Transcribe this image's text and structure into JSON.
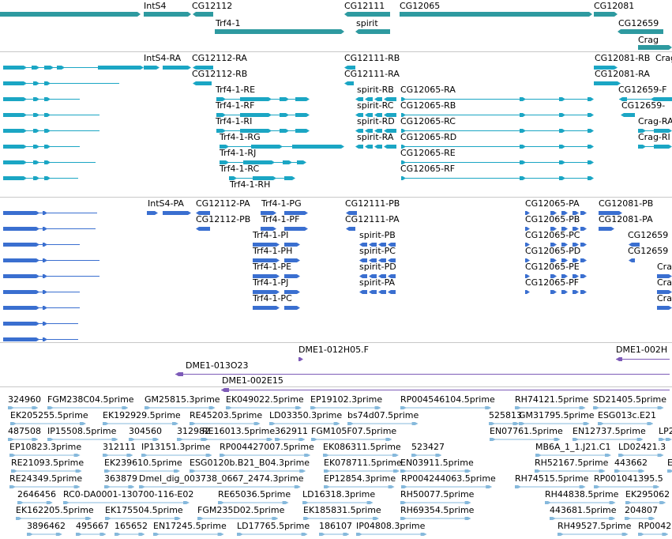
{
  "colors": {
    "gene": "#2e9aa0",
    "transcript": "#1ba6c4",
    "protein": "#3a6fd0",
    "clone": "#7d5bb8",
    "est": "#86b9dc"
  },
  "tracks": {
    "gene_track": {
      "labels": [
        "IntS4",
        "CG12112",
        "Trf4-1",
        "CG12111",
        "spirit",
        "CG12065",
        "CG12081",
        "CG12659",
        "Crag"
      ]
    },
    "transcript_track": {
      "labels": [
        "IntS4-RA",
        "CG12112-RA",
        "CG12112-RB",
        "Trf4-1-RE",
        "Trf4-1-RF",
        "Trf4-1-RI",
        "Trf4-1-RG",
        "Trf4-1-RJ",
        "Trf4-1-RC",
        "Trf4-1-RH",
        "CG12111-RB",
        "CG12111-RA",
        "spirit-RB",
        "spirit-RC",
        "spirit-RD",
        "spirit-RA",
        "CG12065-RA",
        "CG12065-RB",
        "CG12065-RC",
        "CG12065-RD",
        "CG12065-RE",
        "CG12065-RF",
        "CG12081-RB",
        "CG12081-RA",
        "CG12659-F",
        "CG12659-",
        "Crag-RA",
        "Crag-RI",
        "Crag"
      ]
    },
    "protein_track": {
      "labels": [
        "IntS4-PA",
        "CG12112-PA",
        "CG12112-PB",
        "Trf4-1-PG",
        "Trf4-1-PF",
        "Trf4-1-PI",
        "Trf4-1-PH",
        "Trf4-1-PE",
        "Trf4-1-PJ",
        "Trf4-1-PC",
        "CG12111-PB",
        "CG12111-PA",
        "spirit-PB",
        "spirit-PC",
        "spirit-PD",
        "spirit-PA",
        "CG12065-PA",
        "CG12065-PB",
        "CG12065-PC",
        "CG12065-PD",
        "CG12065-PE",
        "CG12065-PF",
        "CG12081-PB",
        "CG12081-PA",
        "CG12659",
        "CG12659",
        "Cra",
        "Cra",
        "Cra"
      ]
    },
    "clone_track": {
      "labels": [
        "DME1-012H05.F",
        "DME1-002H",
        "DME1-013O23",
        "DME1-002E15"
      ]
    },
    "est_track": {
      "labels": [
        "324960",
        "FGM238C04.5prime",
        "GM25815.3prime",
        "EK049022.5prime",
        "EP19102.3prime",
        "RP004546104.5prime",
        "RH74121.5prime",
        "SD21405.5prime",
        "EK205255.5prime",
        "EK192929.5prime",
        "RE45203.5prime",
        "LD03350.3prime",
        "bs74d07.5prime",
        "525813",
        "GM31795.5prime",
        "ESG013c.E21",
        "487508",
        "IP15508.5prime",
        "304560",
        "312982",
        "RE16013.5prime",
        "362911",
        "FGM105F07.5prime",
        "EN07761.5prime",
        "EN12737.5prime",
        "LP2",
        "EP10823.3prime",
        "312111",
        "IP13151.3prime",
        "RP004427007.5prime",
        "EK086311.5prime",
        "523427",
        "MB6A_1_1.J21.C1",
        "LD02421.3",
        "RE21093.5prime",
        "EK239610.5prime",
        "ESG0120b.B21_B04.3prime",
        "EK078711.5prime",
        "EN03911.5prime",
        "RH52167.5prime",
        "443662",
        "E",
        "RE24349.5prime",
        "363879",
        "Dmel_dig_003738_0667_2474.3prime",
        "EP12854.3prime",
        "RP004244063.5prime",
        "RH74515.5prime",
        "RP001041395.5",
        "2646456",
        "RC0-DA0001-130700-116-E02",
        "RE65036.5prime",
        "LD16318.3prime",
        "RH50077.5prime",
        "RH44838.5prime",
        "EK295062",
        "EK162205.5prime",
        "EK175504.5prime",
        "FGM235D02.5prime",
        "EK185831.5prime",
        "RH69354.5prime",
        "204807",
        "443681.5prime",
        "3896462",
        "495667",
        "165652",
        "EN17245.5prime",
        "LD17765.5prime",
        "186107",
        "IP04808.3prime",
        "RH49527.5prime",
        "RP0042"
      ]
    }
  }
}
